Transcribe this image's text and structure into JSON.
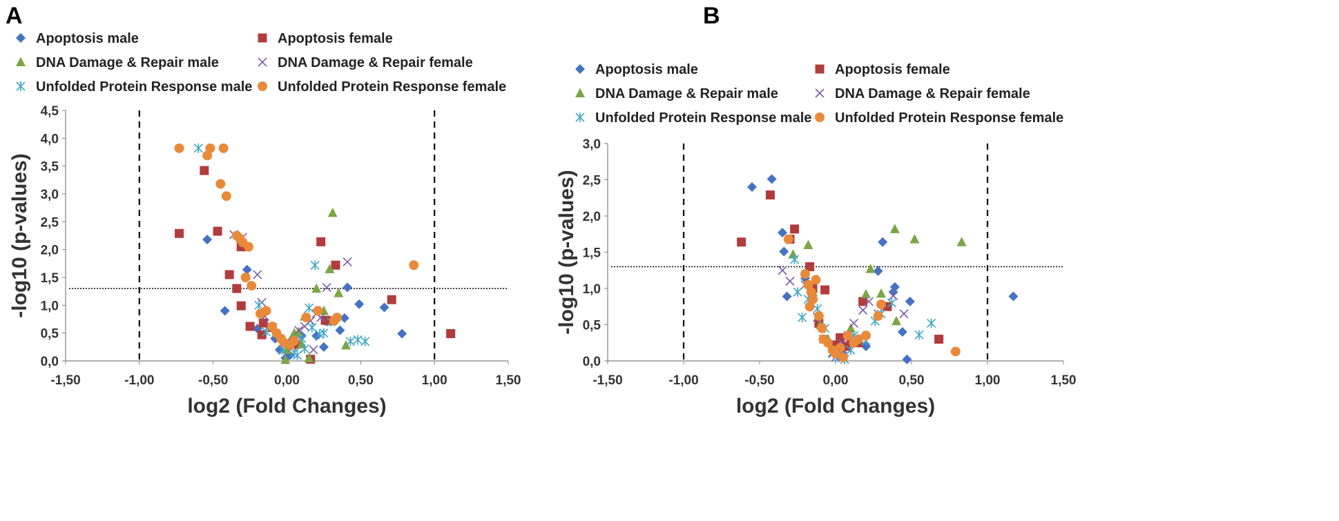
{
  "series_styles": [
    {
      "name": "Apoptosis male",
      "marker": "diamond",
      "color": "#4472c4"
    },
    {
      "name": "Apoptosis female",
      "marker": "square",
      "color": "#b23c3c"
    },
    {
      "name": "DNA Damage & Repair male",
      "marker": "triangle",
      "color": "#7aa645"
    },
    {
      "name": "DNA Damage & Repair female",
      "marker": "x",
      "color": "#7a5ea8"
    },
    {
      "name": "Unfolded Protein Response male",
      "marker": "star",
      "color": "#3fa7c7"
    },
    {
      "name": "Unfolded Protein Response female",
      "marker": "circle",
      "color": "#e98a3a"
    }
  ],
  "chart_data": [
    {
      "panel": "A",
      "type": "scatter",
      "xlabel": "log2 (Fold Changes)",
      "ylabel": "-log10 (p-values)",
      "xlim": [
        -1.5,
        1.5
      ],
      "ylim": [
        0,
        4.5
      ],
      "xticks": [
        "-1,50",
        "-1,00",
        "-0,50",
        "0,00",
        "0,50",
        "1,00",
        "1,50"
      ],
      "yticks": [
        "0,0",
        "0,5",
        "1,0",
        "1,5",
        "2,0",
        "2,5",
        "3,0",
        "3,5",
        "4,0",
        "4,5"
      ],
      "fold_change_cutoffs": [
        -1.0,
        1.0
      ],
      "significance_threshold": 1.3,
      "series": [
        {
          "name": "Apoptosis male",
          "points": [
            [
              -0.54,
              2.18
            ],
            [
              -0.42,
              0.9
            ],
            [
              -0.27,
              1.64
            ],
            [
              -0.2,
              0.58
            ],
            [
              -0.08,
              0.4
            ],
            [
              -0.05,
              0.2
            ],
            [
              0.1,
              0.45
            ],
            [
              0.2,
              0.45
            ],
            [
              0.25,
              0.25
            ],
            [
              0.36,
              0.55
            ],
            [
              0.39,
              0.77
            ],
            [
              0.41,
              1.32
            ],
            [
              0.49,
              1.02
            ],
            [
              0.66,
              0.96
            ],
            [
              0.78,
              0.49
            ],
            [
              0.02,
              0.1
            ],
            [
              -0.01,
              0.05
            ]
          ]
        },
        {
          "name": "Apoptosis female",
          "points": [
            [
              -0.73,
              2.29
            ],
            [
              -0.56,
              3.42
            ],
            [
              -0.47,
              2.33
            ],
            [
              -0.39,
              1.55
            ],
            [
              -0.34,
              1.3
            ],
            [
              -0.31,
              0.99
            ],
            [
              -0.31,
              2.05
            ],
            [
              -0.25,
              0.62
            ],
            [
              -0.17,
              0.47
            ],
            [
              -0.16,
              0.68
            ],
            [
              -0.1,
              0.6
            ],
            [
              0.16,
              0.03
            ],
            [
              0.23,
              2.14
            ],
            [
              0.26,
              0.73
            ],
            [
              0.28,
              0.72
            ],
            [
              0.33,
              1.72
            ],
            [
              0.71,
              1.1
            ],
            [
              1.11,
              0.49
            ],
            [
              0.06,
              0.3
            ]
          ]
        },
        {
          "name": "DNA Damage & Repair male",
          "points": [
            [
              -0.01,
              0.02
            ],
            [
              0.02,
              0.35
            ],
            [
              0.05,
              0.5
            ],
            [
              0.08,
              0.52
            ],
            [
              0.1,
              0.3
            ],
            [
              0.12,
              0.8
            ],
            [
              0.15,
              0.05
            ],
            [
              0.2,
              1.3
            ],
            [
              0.25,
              0.9
            ],
            [
              0.29,
              1.65
            ],
            [
              0.31,
              2.66
            ],
            [
              0.35,
              1.22
            ],
            [
              0.4,
              0.28
            ],
            [
              0.0,
              0.2
            ]
          ]
        },
        {
          "name": "DNA Damage & Repair female",
          "points": [
            [
              -0.36,
              2.27
            ],
            [
              -0.3,
              2.22
            ],
            [
              -0.2,
              1.55
            ],
            [
              -0.17,
              1.05
            ],
            [
              -0.15,
              0.8
            ],
            [
              -0.12,
              0.62
            ],
            [
              -0.08,
              0.48
            ],
            [
              -0.05,
              0.4
            ],
            [
              0.0,
              0.35
            ],
            [
              0.04,
              0.25
            ],
            [
              0.08,
              0.55
            ],
            [
              0.12,
              0.62
            ],
            [
              0.16,
              0.72
            ],
            [
              0.2,
              0.85
            ],
            [
              0.23,
              0.78
            ],
            [
              0.27,
              1.32
            ],
            [
              0.41,
              1.78
            ],
            [
              0.18,
              0.2
            ]
          ]
        },
        {
          "name": "Unfolded Protein Response male",
          "points": [
            [
              -0.6,
              3.82
            ],
            [
              -0.19,
              1.0
            ],
            [
              -0.14,
              0.52
            ],
            [
              -0.03,
              0.2
            ],
            [
              0.07,
              0.1
            ],
            [
              0.1,
              0.4
            ],
            [
              0.15,
              0.95
            ],
            [
              0.17,
              0.6
            ],
            [
              0.19,
              1.72
            ],
            [
              0.22,
              0.48
            ],
            [
              0.25,
              0.5
            ],
            [
              0.3,
              0.7
            ],
            [
              0.43,
              0.35
            ],
            [
              0.48,
              0.38
            ],
            [
              0.53,
              0.35
            ],
            [
              0.12,
              0.22
            ],
            [
              0.05,
              0.15
            ]
          ]
        },
        {
          "name": "Unfolded Protein Response female",
          "points": [
            [
              -0.73,
              3.82
            ],
            [
              -0.54,
              3.69
            ],
            [
              -0.52,
              3.82
            ],
            [
              -0.45,
              3.18
            ],
            [
              -0.43,
              3.82
            ],
            [
              -0.41,
              2.96
            ],
            [
              -0.34,
              2.25
            ],
            [
              -0.32,
              2.2
            ],
            [
              -0.3,
              2.13
            ],
            [
              -0.28,
              1.5
            ],
            [
              -0.24,
              1.35
            ],
            [
              -0.18,
              0.85
            ],
            [
              -0.14,
              0.9
            ],
            [
              -0.1,
              0.62
            ],
            [
              -0.07,
              0.5
            ],
            [
              -0.04,
              0.4
            ],
            [
              -0.02,
              0.33
            ],
            [
              0.02,
              0.28
            ],
            [
              0.05,
              0.36
            ],
            [
              0.13,
              0.78
            ],
            [
              0.21,
              0.9
            ],
            [
              0.32,
              0.72
            ],
            [
              0.34,
              0.78
            ],
            [
              0.86,
              1.72
            ],
            [
              -0.26,
              2.05
            ]
          ]
        }
      ]
    },
    {
      "panel": "B",
      "type": "scatter",
      "xlabel": "log2 (Fold Changes)",
      "ylabel": "-log10 (p-values)",
      "xlim": [
        -1.5,
        1.5
      ],
      "ylim": [
        0,
        3.0
      ],
      "xticks": [
        "-1,50",
        "-1,00",
        "-0,50",
        "0,00",
        "0,50",
        "1,00",
        "1,50"
      ],
      "yticks": [
        "0,0",
        "0,5",
        "1,0",
        "1,5",
        "2,0",
        "2,5",
        "3,0"
      ],
      "fold_change_cutoffs": [
        -1.0,
        1.0
      ],
      "significance_threshold": 1.3,
      "series": [
        {
          "name": "Apoptosis male",
          "points": [
            [
              -0.55,
              2.4
            ],
            [
              -0.42,
              2.51
            ],
            [
              -0.35,
              1.77
            ],
            [
              -0.34,
              1.51
            ],
            [
              -0.32,
              0.89
            ],
            [
              -0.2,
              1.14
            ],
            [
              0.05,
              0.1
            ],
            [
              0.2,
              0.2
            ],
            [
              0.28,
              1.24
            ],
            [
              0.31,
              1.64
            ],
            [
              0.38,
              0.95
            ],
            [
              0.39,
              1.02
            ],
            [
              0.44,
              0.4
            ],
            [
              0.47,
              0.02
            ],
            [
              0.49,
              0.82
            ],
            [
              1.17,
              0.89
            ]
          ]
        },
        {
          "name": "Apoptosis female",
          "points": [
            [
              -0.62,
              1.64
            ],
            [
              -0.43,
              2.29
            ],
            [
              -0.27,
              1.82
            ],
            [
              -0.3,
              1.68
            ],
            [
              -0.17,
              1.3
            ],
            [
              -0.15,
              1.0
            ],
            [
              -0.11,
              0.52
            ],
            [
              -0.07,
              0.98
            ],
            [
              0.03,
              0.32
            ],
            [
              0.07,
              0.2
            ],
            [
              0.1,
              0.25
            ],
            [
              0.15,
              0.25
            ],
            [
              0.18,
              0.82
            ],
            [
              0.34,
              0.75
            ],
            [
              0.68,
              0.3
            ],
            [
              0.0,
              0.22
            ]
          ]
        },
        {
          "name": "DNA Damage & Repair male",
          "points": [
            [
              -0.28,
              1.47
            ],
            [
              -0.18,
              1.6
            ],
            [
              -0.15,
              0.95
            ],
            [
              -0.1,
              0.5
            ],
            [
              -0.05,
              0.3
            ],
            [
              0.1,
              0.45
            ],
            [
              0.2,
              0.92
            ],
            [
              0.23,
              1.27
            ],
            [
              0.3,
              0.93
            ],
            [
              0.39,
              1.82
            ],
            [
              0.52,
              1.68
            ],
            [
              0.83,
              1.64
            ],
            [
              0.4,
              0.55
            ]
          ]
        },
        {
          "name": "DNA Damage & Repair female",
          "points": [
            [
              -0.35,
              1.25
            ],
            [
              -0.3,
              1.1
            ],
            [
              -0.2,
              1.05
            ],
            [
              -0.12,
              0.6
            ],
            [
              -0.08,
              0.3
            ],
            [
              -0.02,
              0.1
            ],
            [
              0.04,
              0.25
            ],
            [
              0.08,
              0.35
            ],
            [
              0.12,
              0.52
            ],
            [
              0.18,
              0.7
            ],
            [
              0.22,
              0.82
            ],
            [
              0.28,
              0.65
            ],
            [
              0.38,
              0.9
            ],
            [
              0.45,
              0.65
            ],
            [
              0.0,
              0.05
            ]
          ]
        },
        {
          "name": "Unfolded Protein Response male",
          "points": [
            [
              -0.27,
              1.4
            ],
            [
              -0.25,
              0.95
            ],
            [
              -0.22,
              0.6
            ],
            [
              -0.18,
              0.85
            ],
            [
              -0.12,
              0.72
            ],
            [
              -0.07,
              0.45
            ],
            [
              -0.02,
              0.12
            ],
            [
              0.02,
              0.05
            ],
            [
              0.06,
              0.02
            ],
            [
              0.12,
              0.35
            ],
            [
              0.2,
              0.28
            ],
            [
              0.26,
              0.55
            ],
            [
              0.3,
              0.65
            ],
            [
              0.37,
              0.8
            ],
            [
              0.55,
              0.36
            ],
            [
              0.63,
              0.52
            ],
            [
              0.1,
              0.15
            ]
          ]
        },
        {
          "name": "Unfolded Protein Response female",
          "points": [
            [
              -0.31,
              1.68
            ],
            [
              -0.2,
              1.2
            ],
            [
              -0.18,
              1.05
            ],
            [
              -0.16,
              0.95
            ],
            [
              -0.15,
              0.85
            ],
            [
              -0.13,
              1.12
            ],
            [
              -0.11,
              0.62
            ],
            [
              -0.09,
              0.45
            ],
            [
              -0.08,
              0.3
            ],
            [
              -0.05,
              0.25
            ],
            [
              -0.02,
              0.15
            ],
            [
              0.0,
              0.1
            ],
            [
              0.03,
              0.18
            ],
            [
              0.08,
              0.35
            ],
            [
              0.12,
              0.25
            ],
            [
              0.15,
              0.3
            ],
            [
              0.2,
              0.35
            ],
            [
              0.28,
              0.62
            ],
            [
              0.3,
              0.78
            ],
            [
              0.79,
              0.13
            ],
            [
              -0.17,
              0.75
            ],
            [
              0.05,
              0.05
            ]
          ]
        }
      ]
    }
  ]
}
